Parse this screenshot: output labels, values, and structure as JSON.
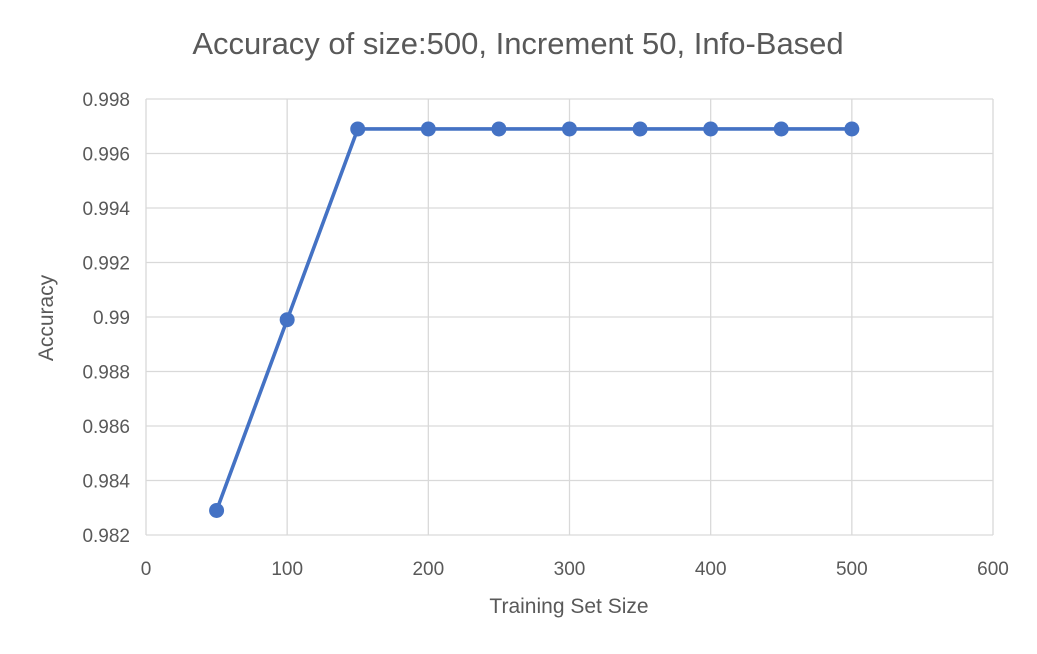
{
  "chart_data": {
    "type": "line",
    "title": "Accuracy of size:500, Increment 50, Info-Based",
    "xlabel": "Training Set Size",
    "ylabel": "Accuracy",
    "xlim": [
      0,
      600
    ],
    "ylim": [
      0.982,
      0.998
    ],
    "x_ticks": [
      0,
      100,
      200,
      300,
      400,
      500,
      600
    ],
    "x_tick_labels": [
      "0",
      "100",
      "200",
      "300",
      "400",
      "500",
      "600"
    ],
    "y_ticks": [
      0.982,
      0.984,
      0.986,
      0.988,
      0.99,
      0.992,
      0.994,
      0.996,
      0.998
    ],
    "y_tick_labels": [
      "0.982",
      "0.984",
      "0.986",
      "0.988",
      "0.99",
      "0.992",
      "0.994",
      "0.996",
      "0.998"
    ],
    "grid": true,
    "legend": "none",
    "series": [
      {
        "color": "#4472c4",
        "x": [
          50,
          100,
          150,
          200,
          250,
          300,
          350,
          400,
          450,
          500
        ],
        "y": [
          0.9829,
          0.9899,
          0.9969,
          0.9969,
          0.9969,
          0.9969,
          0.9969,
          0.9969,
          0.9969,
          0.9969
        ]
      }
    ]
  }
}
